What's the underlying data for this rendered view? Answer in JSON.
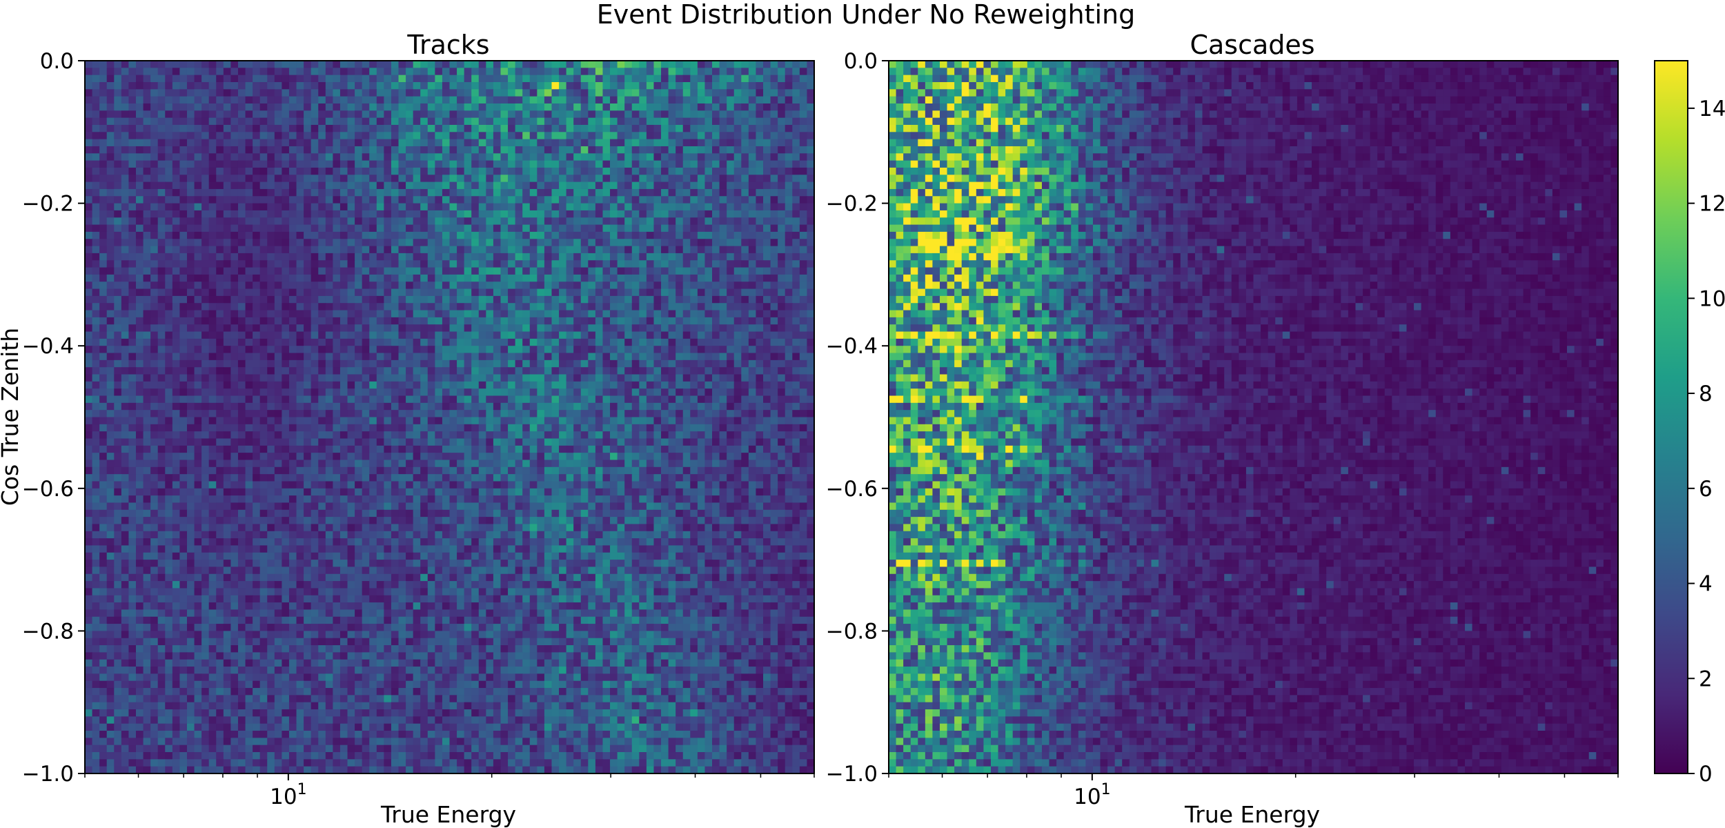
{
  "figure": {
    "suptitle": "Event Distribution Under No Reweighting"
  },
  "colormap": {
    "name": "viridis",
    "stops": [
      "#440154",
      "#482878",
      "#3e4989",
      "#31688e",
      "#26828e",
      "#1f9e89",
      "#35b779",
      "#6ece58",
      "#b5de2b",
      "#fde725"
    ]
  },
  "chart_data": [
    {
      "type": "heatmap",
      "title": "Tracks",
      "xlabel": "True Energy",
      "ylabel": "Cos True Zenith",
      "xscale": "log",
      "xlim": [
        5,
        60
      ],
      "ylim": [
        -1.0,
        0.0
      ],
      "xticks": [
        {
          "value": 10,
          "base": "10",
          "exponent": "1"
        }
      ],
      "yticks": [
        "0.0",
        "−0.2",
        "−0.4",
        "−0.6",
        "−0.8",
        "−1.0"
      ],
      "ytick_values": [
        0.0,
        -0.2,
        -0.4,
        -0.6,
        -0.8,
        -1.0
      ],
      "bins": {
        "x": 100,
        "y": 100
      },
      "value_range": [
        0,
        15
      ],
      "peak": {
        "energy": 25.0,
        "cos_zenith": -0.03,
        "count": 15
      },
      "bright_rows_cos_zenith": [
        -0.375,
        -0.465
      ]
    },
    {
      "type": "heatmap",
      "title": "Cascades",
      "xlabel": "True Energy",
      "ylabel": "",
      "xscale": "log",
      "xlim": [
        5,
        60
      ],
      "ylim": [
        -1.0,
        0.0
      ],
      "xticks": [
        {
          "value": 10,
          "base": "10",
          "exponent": "1"
        }
      ],
      "yticks": [
        "0.0",
        "−0.2",
        "−0.4",
        "−0.6",
        "−0.8",
        "−1.0"
      ],
      "ytick_values": [
        0.0,
        -0.2,
        -0.4,
        -0.6,
        -0.8,
        -1.0
      ],
      "bins": {
        "x": 100,
        "y": 100
      },
      "value_range": [
        0,
        15
      ],
      "peak": {
        "energy": 5.5,
        "cos_zenith": -0.465,
        "count": 14
      },
      "bright_rows_cos_zenith": [
        -0.375,
        -0.465,
        -0.535,
        -0.695
      ]
    }
  ],
  "colorbar": {
    "range": [
      0,
      15
    ],
    "ticks": [
      "0",
      "2",
      "4",
      "6",
      "8",
      "10",
      "12",
      "14"
    ],
    "tick_values": [
      0,
      2,
      4,
      6,
      8,
      10,
      12,
      14
    ]
  }
}
